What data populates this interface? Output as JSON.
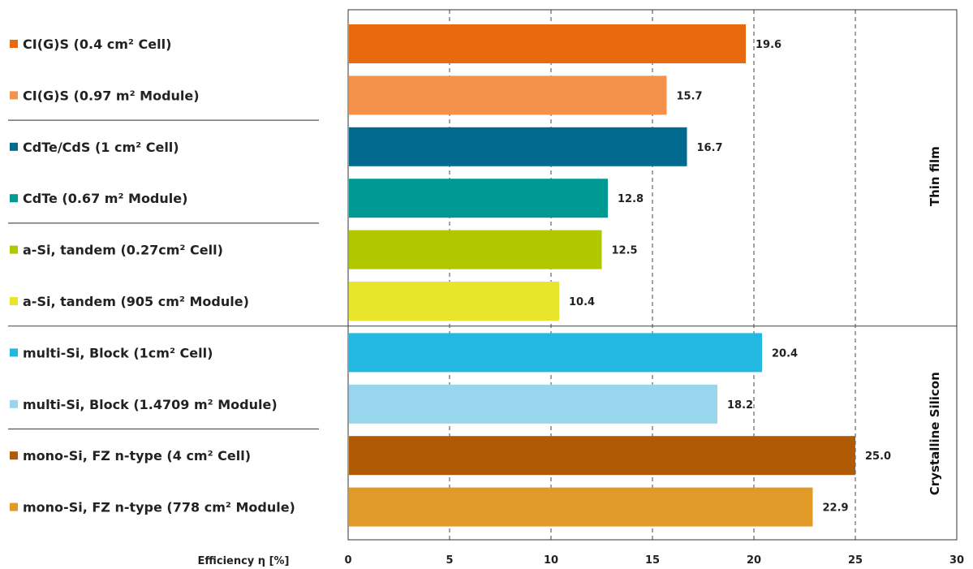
{
  "chart_data": {
    "type": "bar",
    "orientation": "horizontal",
    "title": "",
    "xlabel": "Efficiency  η [%]",
    "ylabel": "",
    "xlim": [
      0,
      30
    ],
    "x_ticks": [
      0,
      5,
      10,
      15,
      20,
      25,
      30
    ],
    "grid": "vertical dashed",
    "legend": "left (category labels with color squares)",
    "categories": [
      "CI(G)S (0.4 cm² Cell)",
      "CI(G)S (0.97 m² Module)",
      "CdTe/CdS (1 cm² Cell)",
      "CdTe (0.67 m² Module)",
      "a-Si, tandem (0.27cm² Cell)",
      "a-Si, tandem (905 cm² Module)",
      "multi-Si, Block (1cm² Cell)",
      "multi-Si, Block (1.4709 m² Module)",
      "mono-Si, FZ n-type (4 cm² Cell)",
      "mono-Si, FZ n-type (778 cm² Module)"
    ],
    "values": [
      19.6,
      15.7,
      16.7,
      12.8,
      12.5,
      10.4,
      20.4,
      18.2,
      25.0,
      22.9
    ],
    "data_labels": [
      "19.6",
      "15.7",
      "16.7",
      "12.8",
      "12.5",
      "10.4",
      "20.4",
      "18.2",
      "25.0",
      "22.9"
    ],
    "colors": [
      "#e8690e",
      "#f4914a",
      "#006b8f",
      "#009a93",
      "#b1c800",
      "#e8e52a",
      "#22b8e2",
      "#98d6ee",
      "#b05a05",
      "#df9a27"
    ],
    "groups": [
      {
        "label": "Thin film",
        "from": 0,
        "to": 5
      },
      {
        "label": "Crystalline Silicon",
        "from": 6,
        "to": 9
      }
    ]
  }
}
